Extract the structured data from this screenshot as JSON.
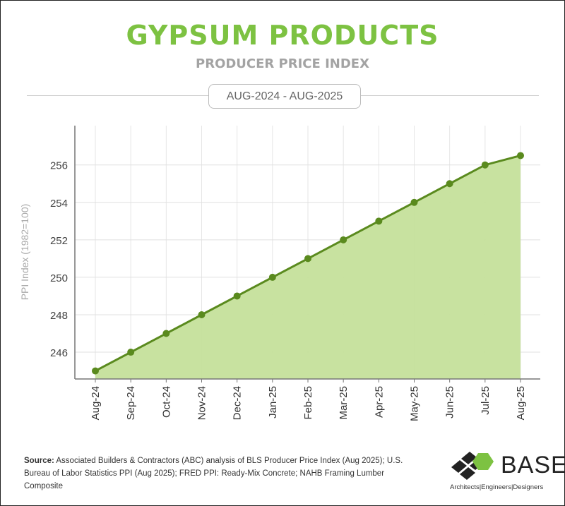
{
  "header": {
    "title": "GYPSUM PRODUCTS",
    "subtitle": "PRODUCER PRICE INDEX",
    "date_range": "AUG-2024 - AUG-2025"
  },
  "chart_data": {
    "type": "area",
    "title": "GYPSUM PRODUCTS",
    "subtitle": "PRODUCER PRICE INDEX",
    "xlabel": "",
    "ylabel": "PPI Index (1982=100)",
    "categories": [
      "Aug-24",
      "Sep-24",
      "Oct-24",
      "Nov-24",
      "Dec-24",
      "Jan-25",
      "Feb-25",
      "Mar-25",
      "Apr-25",
      "May-25",
      "Jun-25",
      "Jul-25",
      "Aug-25"
    ],
    "values": [
      245,
      246,
      247,
      248,
      249,
      250,
      251,
      252,
      253,
      254,
      255,
      256,
      256.5
    ],
    "yticks": [
      246,
      248,
      250,
      252,
      254,
      256
    ],
    "ylim": [
      244.57,
      258.1
    ],
    "grid": true,
    "legend": "none",
    "colors": {
      "line": "#5a8a1e",
      "fill": "#c5e09b",
      "title": "#7dc242"
    }
  },
  "footer": {
    "source_label": "Source:",
    "source_text": " Associated Builders & Contractors (ABC) analysis of BLS Producer Price Index (Aug 2025); U.S. Bureau of Labor Statistics PPI (Aug 2025); FRED PPI: Ready-Mix Concrete; NAHB Framing Lumber Composite"
  },
  "logo": {
    "word": "BASE",
    "number": "4",
    "tagline": "Architects|Engineers|Designers"
  }
}
